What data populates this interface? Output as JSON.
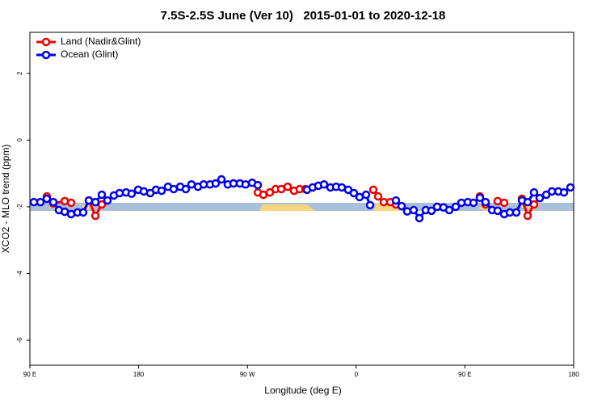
{
  "chart_data": {
    "type": "line",
    "title": "7.5S-2.5S June (Ver 10)   2015-01-01 to 2020-12-18",
    "xlabel": "Longitude (deg E)",
    "ylabel": "XCO2 - MLO trend (ppm)",
    "xlim": [
      90,
      540
    ],
    "xticks": [
      {
        "value": 90,
        "label": "90 E"
      },
      {
        "value": 180,
        "label": "180"
      },
      {
        "value": 270,
        "label": "90 W"
      },
      {
        "value": 360,
        "label": "0"
      },
      {
        "value": 450,
        "label": "90 E"
      },
      {
        "value": 540,
        "label": "180"
      }
    ],
    "ylim": [
      -6.75,
      3.23
    ],
    "yticks": [
      2,
      0,
      -2,
      -4,
      -6
    ],
    "legend": "top-left",
    "series": [
      {
        "name": "Land (Nadir&Glint)",
        "color": "#ee0000",
        "x": [
          104,
          109.4,
          118.8,
          124.1,
          null,
          138.8,
          144.2,
          149.5,
          null,
          278.6,
          283.2,
          288.6,
          293.3,
          298,
          303.3,
          308.6,
          313.3,
          318,
          null,
          374.2,
          378.2,
          382.9,
          388.2,
          392.9,
          null,
          462.4,
          467.1,
          null,
          477.1,
          482.5,
          null,
          497.2,
          501.9,
          507.2,
          511.9
        ],
        "values": [
          -1.69,
          -1.9,
          -1.83,
          -1.88,
          null,
          -1.81,
          -2.27,
          -1.93,
          null,
          -1.57,
          -1.64,
          -1.57,
          -1.47,
          -1.47,
          -1.4,
          -1.52,
          -1.47,
          -1.47,
          null,
          -1.49,
          -1.69,
          -1.86,
          -1.86,
          -1.93,
          null,
          -1.69,
          -1.93,
          null,
          -1.83,
          -1.88,
          null,
          -1.76,
          -2.27,
          -1.93,
          -1.74
        ]
      },
      {
        "name": "Ocean (Glint)",
        "color": "#0000ee",
        "x": [
          93.3,
          98.7,
          104,
          109.4,
          114,
          118.8,
          124.1,
          129.4,
          134.1,
          138.8,
          144.2,
          149.5,
          154.2,
          159.5,
          164.2,
          169.6,
          174.2,
          179.6,
          184.3,
          189.6,
          194.3,
          199,
          204.3,
          209,
          214.4,
          219,
          223.7,
          229.1,
          233.8,
          239.1,
          243.8,
          248.5,
          253.8,
          258.5,
          263.8,
          268.5,
          273.9,
          278.6,
          null,
          319.3,
          324,
          328.7,
          333.4,
          338.7,
          343.4,
          348.1,
          353.4,
          358.1,
          362.8,
          368.2,
          371.5,
          null,
          392.9,
          397.6,
          402.2,
          407.6,
          412.3,
          417.6,
          422.3,
          427,
          432.3,
          437,
          442.4,
          447.1,
          452.4,
          457.1,
          462.4,
          467.1,
          472.5,
          477.1,
          482.5,
          487.2,
          492.5,
          497.2,
          501.9,
          507.2,
          511.9,
          517.3,
          522,
          527.3,
          532,
          537.3
        ],
        "values": [
          -1.86,
          -1.86,
          -1.76,
          -1.86,
          -2.1,
          -2.15,
          -2.22,
          -2.17,
          -2.17,
          -1.81,
          -1.86,
          -1.64,
          -1.81,
          -1.66,
          -1.59,
          -1.57,
          -1.61,
          -1.49,
          -1.54,
          -1.59,
          -1.49,
          -1.52,
          -1.4,
          -1.47,
          -1.4,
          -1.47,
          -1.33,
          -1.4,
          -1.33,
          -1.33,
          -1.3,
          -1.18,
          -1.33,
          -1.3,
          -1.3,
          -1.33,
          -1.28,
          -1.35,
          null,
          -1.49,
          -1.42,
          -1.37,
          -1.33,
          -1.42,
          -1.4,
          -1.42,
          -1.49,
          -1.59,
          -1.71,
          -1.64,
          -1.95,
          null,
          -1.81,
          -1.98,
          -2.14,
          -2.1,
          -2.34,
          -2.1,
          -2.12,
          -2.0,
          -2.02,
          -2.1,
          -2.0,
          -1.88,
          -1.86,
          -1.88,
          -1.73,
          -1.86,
          -2.1,
          -2.12,
          -2.22,
          -2.17,
          -2.17,
          -1.81,
          -1.86,
          -1.57,
          -1.74,
          -1.64,
          -1.54,
          -1.54,
          -1.57,
          -1.42
        ]
      }
    ]
  }
}
